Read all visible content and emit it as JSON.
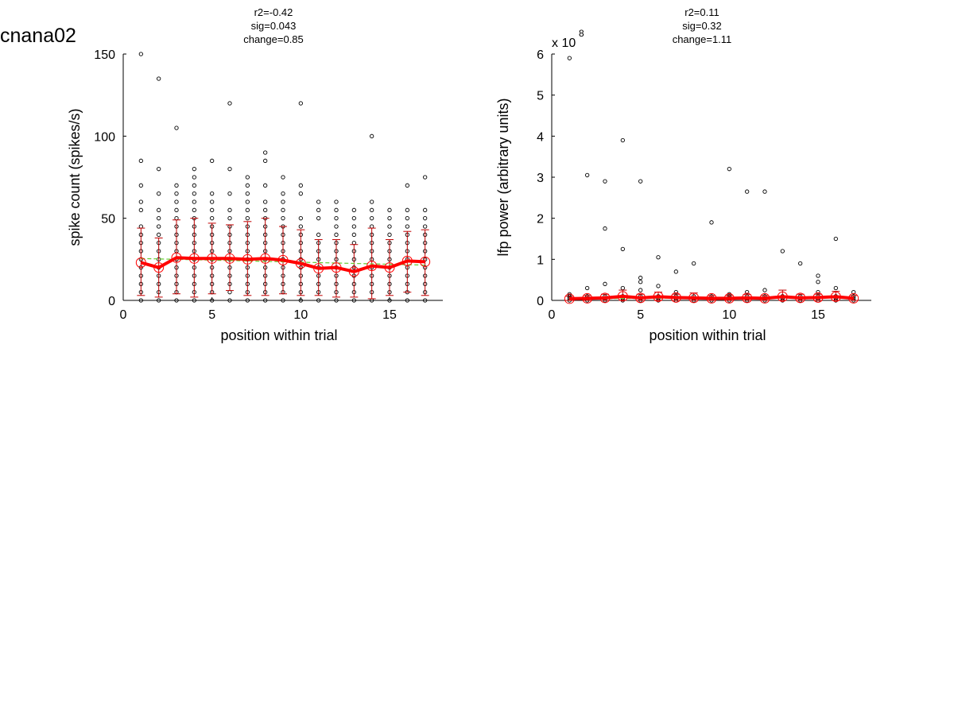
{
  "figure": {
    "title": "cnana02"
  },
  "chart_data": [
    {
      "type": "scatter",
      "stats": [
        "r2=-0.42",
        "sig=0.043",
        "change=0.85"
      ],
      "xlabel": "position within trial",
      "ylabel": "spike count (spikes/s)",
      "xlim": [
        0,
        18
      ],
      "ylim": [
        0,
        150
      ],
      "xticks": [
        0,
        5,
        10,
        15
      ],
      "yticks": [
        0,
        50,
        100,
        150
      ],
      "exponent_label": "",
      "raw_points": [
        {
          "x": 1,
          "y": [
            0,
            5,
            10,
            15,
            20,
            25,
            30,
            35,
            40,
            45,
            55,
            60,
            70,
            85,
            150
          ]
        },
        {
          "x": 2,
          "y": [
            0,
            5,
            10,
            15,
            20,
            25,
            30,
            35,
            40,
            45,
            50,
            55,
            65,
            80,
            135
          ]
        },
        {
          "x": 3,
          "y": [
            0,
            5,
            10,
            15,
            20,
            25,
            30,
            35,
            40,
            45,
            50,
            55,
            60,
            65,
            70,
            105
          ]
        },
        {
          "x": 4,
          "y": [
            0,
            5,
            10,
            15,
            20,
            25,
            30,
            35,
            40,
            45,
            50,
            55,
            60,
            65,
            70,
            75,
            80
          ]
        },
        {
          "x": 5,
          "y": [
            0,
            5,
            10,
            15,
            20,
            25,
            30,
            35,
            40,
            45,
            50,
            55,
            60,
            65,
            85
          ]
        },
        {
          "x": 6,
          "y": [
            0,
            5,
            10,
            15,
            20,
            25,
            30,
            35,
            40,
            45,
            50,
            55,
            65,
            80,
            120
          ]
        },
        {
          "x": 7,
          "y": [
            0,
            5,
            10,
            15,
            20,
            25,
            30,
            35,
            40,
            45,
            50,
            55,
            60,
            65,
            70,
            75
          ]
        },
        {
          "x": 8,
          "y": [
            0,
            5,
            10,
            15,
            20,
            25,
            30,
            35,
            40,
            45,
            50,
            55,
            60,
            70,
            85,
            90
          ]
        },
        {
          "x": 9,
          "y": [
            0,
            5,
            10,
            15,
            20,
            25,
            30,
            35,
            40,
            45,
            50,
            55,
            60,
            65,
            75
          ]
        },
        {
          "x": 10,
          "y": [
            0,
            5,
            10,
            15,
            20,
            25,
            30,
            35,
            40,
            45,
            50,
            65,
            70,
            120
          ]
        },
        {
          "x": 11,
          "y": [
            0,
            5,
            10,
            15,
            20,
            25,
            30,
            35,
            40,
            50,
            55,
            60
          ]
        },
        {
          "x": 12,
          "y": [
            0,
            5,
            10,
            15,
            20,
            25,
            30,
            35,
            40,
            45,
            50,
            55,
            60
          ]
        },
        {
          "x": 13,
          "y": [
            0,
            5,
            10,
            15,
            20,
            25,
            30,
            35,
            40,
            45,
            50,
            55
          ]
        },
        {
          "x": 14,
          "y": [
            0,
            5,
            10,
            15,
            20,
            25,
            30,
            35,
            40,
            45,
            50,
            55,
            60,
            100
          ]
        },
        {
          "x": 15,
          "y": [
            0,
            5,
            10,
            15,
            20,
            25,
            30,
            35,
            40,
            45,
            50,
            55
          ]
        },
        {
          "x": 16,
          "y": [
            0,
            5,
            10,
            15,
            20,
            25,
            30,
            35,
            40,
            45,
            50,
            55,
            70
          ]
        },
        {
          "x": 17,
          "y": [
            0,
            5,
            10,
            15,
            20,
            25,
            30,
            35,
            40,
            45,
            50,
            55,
            75
          ]
        }
      ],
      "mean": {
        "x": [
          1,
          2,
          3,
          4,
          5,
          6,
          7,
          8,
          9,
          10,
          11,
          12,
          13,
          14,
          15,
          16,
          17
        ],
        "y": [
          23,
          20,
          26,
          25.5,
          25.5,
          25.5,
          25,
          25.5,
          24.5,
          22.5,
          19.5,
          20,
          17.5,
          21,
          20,
          24,
          23.5
        ]
      },
      "error_bars": [
        {
          "x": 1,
          "low": 3,
          "high": 44
        },
        {
          "x": 2,
          "low": 2,
          "high": 38
        },
        {
          "x": 3,
          "low": 4,
          "high": 49
        },
        {
          "x": 4,
          "low": 2,
          "high": 50
        },
        {
          "x": 5,
          "low": 4,
          "high": 47
        },
        {
          "x": 6,
          "low": 6,
          "high": 46
        },
        {
          "x": 7,
          "low": 3,
          "high": 48
        },
        {
          "x": 8,
          "low": 3,
          "high": 50
        },
        {
          "x": 9,
          "low": 4,
          "high": 45
        },
        {
          "x": 10,
          "low": 3,
          "high": 43
        },
        {
          "x": 11,
          "low": 3,
          "high": 37
        },
        {
          "x": 12,
          "low": 2,
          "high": 37
        },
        {
          "x": 13,
          "low": 2,
          "high": 34
        },
        {
          "x": 14,
          "low": 1,
          "high": 44
        },
        {
          "x": 15,
          "low": 3,
          "high": 37
        },
        {
          "x": 16,
          "low": 5,
          "high": 42
        },
        {
          "x": 17,
          "low": 3,
          "high": 43
        }
      ],
      "fit_line": {
        "x": [
          1,
          17
        ],
        "y": [
          25.5,
          21.5
        ]
      }
    },
    {
      "type": "scatter",
      "stats": [
        "r2=0.11",
        "sig=0.32",
        "change=1.11"
      ],
      "xlabel": "position within trial",
      "ylabel": "lfp power (arbitrary units)",
      "xlim": [
        0,
        18
      ],
      "ylim": [
        0,
        6
      ],
      "xticks": [
        0,
        5,
        10,
        15
      ],
      "yticks": [
        0,
        1,
        2,
        3,
        4,
        5,
        6
      ],
      "exponent_label": "x 10",
      "exponent_value": "8",
      "raw_points": [
        {
          "x": 1,
          "y": [
            0,
            0.05,
            0.1,
            0.15,
            5.9
          ]
        },
        {
          "x": 2,
          "y": [
            0,
            0.05,
            0.1,
            0.3,
            3.05
          ]
        },
        {
          "x": 3,
          "y": [
            0,
            0.05,
            0.1,
            0.4,
            1.75,
            2.9
          ]
        },
        {
          "x": 4,
          "y": [
            0,
            0.05,
            0.1,
            0.3,
            1.25,
            3.9
          ]
        },
        {
          "x": 5,
          "y": [
            0,
            0.05,
            0.1,
            0.25,
            0.45,
            0.55,
            2.9
          ]
        },
        {
          "x": 6,
          "y": [
            0,
            0.05,
            0.1,
            0.35,
            1.05
          ]
        },
        {
          "x": 7,
          "y": [
            0,
            0.05,
            0.1,
            0.2,
            0.7
          ]
        },
        {
          "x": 8,
          "y": [
            0,
            0.05,
            0.1,
            0.9
          ]
        },
        {
          "x": 9,
          "y": [
            0,
            0.05,
            0.1,
            1.9
          ]
        },
        {
          "x": 10,
          "y": [
            0,
            0.05,
            0.1,
            0.15,
            3.2
          ]
        },
        {
          "x": 11,
          "y": [
            0,
            0.05,
            0.1,
            0.2,
            2.65
          ]
        },
        {
          "x": 12,
          "y": [
            0,
            0.05,
            0.1,
            0.25,
            2.65
          ]
        },
        {
          "x": 13,
          "y": [
            0,
            0.05,
            0.1,
            1.2
          ]
        },
        {
          "x": 14,
          "y": [
            0,
            0.05,
            0.1,
            0.9
          ]
        },
        {
          "x": 15,
          "y": [
            0,
            0.05,
            0.1,
            0.2,
            0.45,
            0.6
          ]
        },
        {
          "x": 16,
          "y": [
            0,
            0.05,
            0.1,
            0.3,
            1.5
          ]
        },
        {
          "x": 17,
          "y": [
            0,
            0.05,
            0.1,
            0.2
          ]
        }
      ],
      "mean": {
        "x": [
          1,
          2,
          3,
          4,
          5,
          6,
          7,
          8,
          9,
          10,
          11,
          12,
          13,
          14,
          15,
          16,
          17
        ],
        "y": [
          0.04,
          0.05,
          0.06,
          0.1,
          0.06,
          0.09,
          0.07,
          0.06,
          0.05,
          0.05,
          0.06,
          0.05,
          0.09,
          0.06,
          0.07,
          0.09,
          0.05
        ]
      },
      "error_bars": [
        {
          "x": 1,
          "low": 0,
          "high": 0.1
        },
        {
          "x": 2,
          "low": 0,
          "high": 0.12
        },
        {
          "x": 3,
          "low": 0,
          "high": 0.15
        },
        {
          "x": 4,
          "low": 0,
          "high": 0.25
        },
        {
          "x": 5,
          "low": 0,
          "high": 0.15
        },
        {
          "x": 6,
          "low": 0,
          "high": 0.2
        },
        {
          "x": 7,
          "low": 0,
          "high": 0.15
        },
        {
          "x": 8,
          "low": 0,
          "high": 0.18
        },
        {
          "x": 9,
          "low": 0,
          "high": 0.12
        },
        {
          "x": 10,
          "low": 0,
          "high": 0.12
        },
        {
          "x": 11,
          "low": 0,
          "high": 0.14
        },
        {
          "x": 12,
          "low": 0,
          "high": 0.12
        },
        {
          "x": 13,
          "low": 0,
          "high": 0.25
        },
        {
          "x": 14,
          "low": 0,
          "high": 0.15
        },
        {
          "x": 15,
          "low": 0,
          "high": 0.15
        },
        {
          "x": 16,
          "low": 0,
          "high": 0.22
        },
        {
          "x": 17,
          "low": 0,
          "high": 0.12
        }
      ],
      "fit_line": {
        "x": [
          1,
          17
        ],
        "y": [
          0.04,
          0.08
        ]
      }
    }
  ],
  "colors": {
    "mean_line": "#ff0000",
    "error_bars": "#c00000",
    "fit_line": "#66cc33",
    "points": "#000000"
  }
}
